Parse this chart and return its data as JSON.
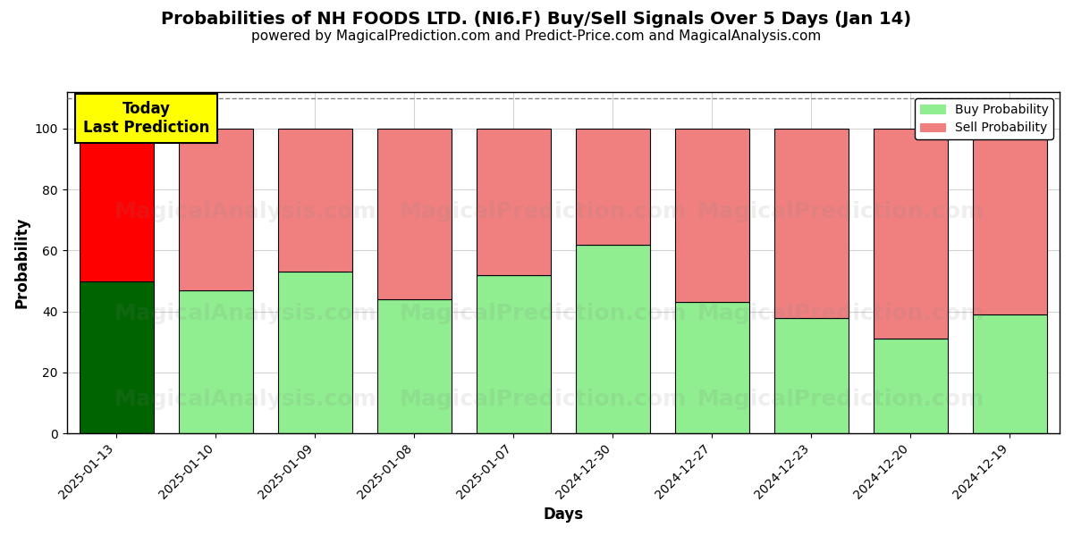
{
  "title": "Probabilities of NH FOODS LTD. (NI6.F) Buy/Sell Signals Over 5 Days (Jan 14)",
  "subtitle": "powered by MagicalPrediction.com and Predict-Price.com and MagicalAnalysis.com",
  "xlabel": "Days",
  "ylabel": "Probability",
  "categories": [
    "2025-01-13",
    "2025-01-10",
    "2025-01-09",
    "2025-01-08",
    "2025-01-07",
    "2024-12-30",
    "2024-12-27",
    "2024-12-23",
    "2024-12-20",
    "2024-12-19"
  ],
  "buy_values": [
    50,
    47,
    53,
    44,
    52,
    62,
    43,
    38,
    31,
    39
  ],
  "sell_values": [
    50,
    53,
    47,
    56,
    48,
    38,
    57,
    62,
    69,
    61
  ],
  "today_buy_color": "#006400",
  "today_sell_color": "#FF0000",
  "buy_color": "#90EE90",
  "sell_color": "#F08080",
  "bar_edge_color": "#000000",
  "bar_edge_width": 0.8,
  "ylim_max": 112,
  "yticks": [
    0,
    20,
    40,
    60,
    80,
    100
  ],
  "dashed_line_y": 110,
  "annotation_text": "Today\nLast Prediction",
  "background_color": "#ffffff",
  "title_fontsize": 14,
  "subtitle_fontsize": 11,
  "axis_label_fontsize": 12,
  "tick_fontsize": 10,
  "legend_fontsize": 10
}
